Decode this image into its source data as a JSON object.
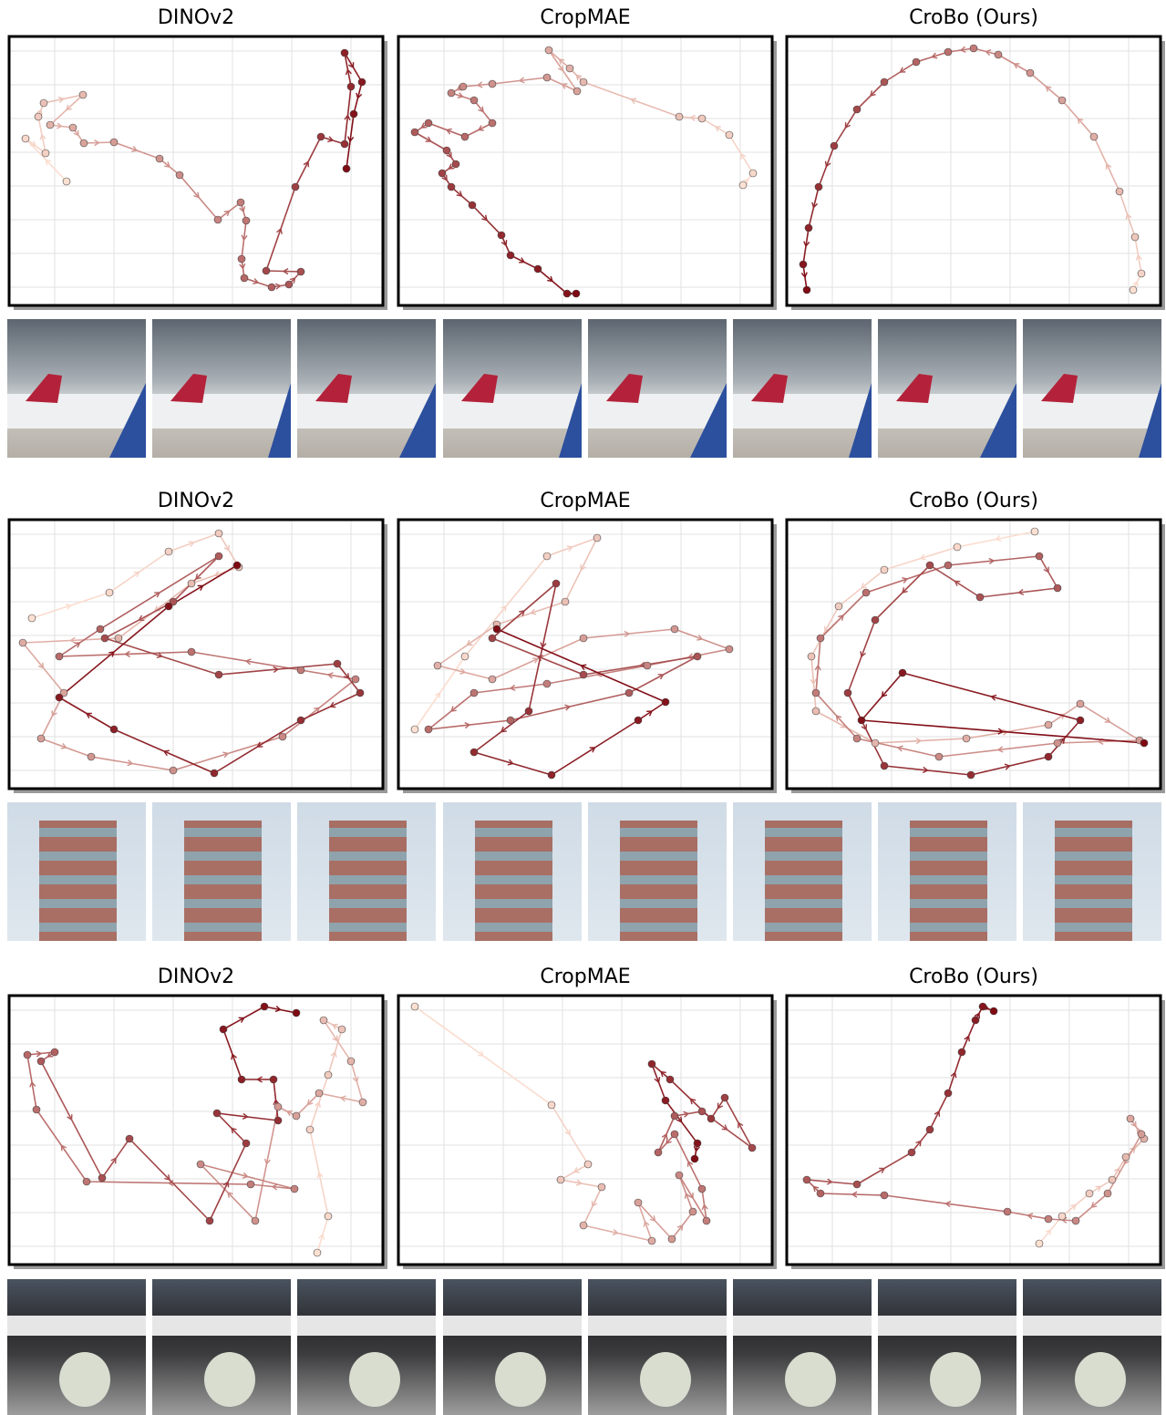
{
  "chart_data": [
    {
      "type": "line",
      "title": "DINOv2",
      "colors": [
        "#fde0d2",
        "#7f0a13"
      ],
      "xlim": [
        0,
        410
      ],
      "ylim": [
        0,
        295
      ],
      "xticks": [
        50,
        115,
        180,
        245,
        310,
        375
      ],
      "yticks": [
        20,
        57,
        94,
        131,
        168,
        205,
        242,
        279
      ],
      "x": [
        63,
        18,
        40,
        32,
        38,
        81,
        45,
        70,
        82,
        115,
        165,
        187,
        229,
        254,
        260,
        255,
        258,
        288,
        307,
        320,
        282,
        314,
        342,
        368,
        375,
        368,
        387,
        378,
        370
      ],
      "y": [
        136,
        183,
        167,
        207,
        222,
        231,
        198,
        195,
        178,
        179,
        161,
        143,
        94,
        113,
        93,
        51,
        30,
        20,
        23,
        37,
        38,
        130,
        185,
        177,
        240,
        277,
        245,
        210,
        150
      ]
    },
    {
      "type": "line",
      "title": "CropMAE",
      "colors": [
        "#fde0d2",
        "#7f0a13"
      ],
      "xlim": [
        0,
        410
      ],
      "ylim": [
        0,
        295
      ],
      "xticks": [
        50,
        115,
        180,
        245,
        310,
        375
      ],
      "yticks": [
        20,
        57,
        94,
        131,
        168,
        205,
        242,
        279
      ],
      "x": [
        378,
        389,
        363,
        333,
        308,
        203,
        188,
        165,
        196,
        163,
        103,
        71,
        58,
        83,
        103,
        73,
        33,
        18,
        53,
        63,
        48,
        58,
        81,
        113,
        123,
        153,
        185,
        195
      ],
      "y": [
        132,
        145,
        187,
        205,
        207,
        245,
        260,
        280,
        235,
        250,
        243,
        240,
        233,
        225,
        200,
        185,
        200,
        190,
        170,
        155,
        145,
        130,
        110,
        77,
        55,
        40,
        13,
        13
      ]
    },
    {
      "type": "line",
      "title": "CroBo (Ours)",
      "colors": [
        "#fde0d2",
        "#7f0a13"
      ],
      "xlim": [
        0,
        410
      ],
      "ylim": [
        0,
        295
      ],
      "xticks": [
        50,
        115,
        180,
        245,
        310,
        375
      ],
      "yticks": [
        20,
        57,
        94,
        131,
        168,
        205,
        242,
        279
      ],
      "x": [
        380,
        389,
        382,
        365,
        337,
        302,
        267,
        232,
        205,
        177,
        142,
        107,
        77,
        52,
        35,
        24,
        18,
        22
      ],
      "y": [
        17,
        35,
        75,
        125,
        185,
        225,
        255,
        275,
        282,
        278,
        267,
        245,
        215,
        175,
        130,
        85,
        45,
        17
      ]
    },
    {
      "type": "line",
      "title": "DINOv2",
      "colors": [
        "#fde0d2",
        "#7f0a13"
      ],
      "xlim": [
        0,
        410
      ],
      "ylim": [
        0,
        295
      ],
      "xticks": [
        50,
        115,
        180,
        245,
        310,
        375
      ],
      "yticks": [
        20,
        57,
        94,
        131,
        168,
        205,
        242,
        279
      ],
      "x": [
        25,
        110,
        175,
        230,
        252,
        200,
        120,
        15,
        60,
        35,
        90,
        180,
        300,
        380,
        320,
        200,
        55,
        100,
        230,
        180,
        105,
        230,
        360,
        385,
        320,
        225,
        115,
        55,
        175,
        250
      ],
      "y": [
        187,
        215,
        260,
        280,
        243,
        225,
        165,
        160,
        105,
        55,
        35,
        20,
        57,
        120,
        130,
        150,
        145,
        175,
        255,
        205,
        165,
        125,
        137,
        105,
        75,
        17,
        65,
        100,
        200,
        245
      ]
    },
    {
      "type": "line",
      "title": "CropMAE",
      "colors": [
        "#fde0d2",
        "#7f0a13"
      ],
      "xlim": [
        0,
        410
      ],
      "ylim": [
        0,
        295
      ],
      "xticks": [
        50,
        115,
        180,
        245,
        310,
        375
      ],
      "yticks": [
        20,
        57,
        94,
        131,
        168,
        205,
        242,
        279
      ],
      "x": [
        18,
        73,
        163,
        218,
        183,
        108,
        43,
        103,
        203,
        303,
        363,
        273,
        163,
        83,
        33,
        123,
        253,
        328,
        203,
        103,
        173,
        143,
        83,
        168,
        263,
        293,
        108
      ],
      "y": [
        65,
        145,
        255,
        275,
        205,
        180,
        135,
        120,
        165,
        175,
        153,
        135,
        115,
        105,
        65,
        75,
        105,
        145,
        125,
        165,
        225,
        85,
        40,
        15,
        75,
        95,
        175
      ]
    },
    {
      "type": "line",
      "title": "CroBo (Ours)",
      "colors": [
        "#fde0d2",
        "#7f0a13"
      ],
      "xlim": [
        0,
        410
      ],
      "ylim": [
        0,
        295
      ],
      "xticks": [
        50,
        115,
        180,
        245,
        310,
        375
      ],
      "yticks": [
        20,
        57,
        94,
        131,
        168,
        205,
        242,
        279
      ],
      "x": [
        272,
        187,
        107,
        57,
        27,
        32,
        97,
        197,
        287,
        322,
        387,
        297,
        167,
        77,
        32,
        37,
        87,
        177,
        277,
        297,
        212,
        157,
        97,
        67,
        107,
        202,
        287,
        322,
        127,
        82,
        392
      ],
      "y": [
        282,
        265,
        240,
        200,
        145,
        85,
        50,
        55,
        70,
        93,
        53,
        50,
        35,
        55,
        105,
        165,
        215,
        245,
        255,
        220,
        210,
        245,
        185,
        105,
        25,
        15,
        35,
        75,
        127,
        75,
        50
      ]
    },
    {
      "type": "line",
      "title": "DINOv2",
      "colors": [
        "#fde0d2",
        "#7f0a13"
      ],
      "xlim": [
        0,
        410
      ],
      "ylim": [
        0,
        295
      ],
      "xticks": [
        50,
        115,
        180,
        245,
        310,
        375
      ],
      "yticks": [
        20,
        57,
        94,
        131,
        168,
        205,
        242,
        279
      ],
      "x": [
        338,
        350,
        330,
        350,
        365,
        345,
        375,
        388,
        340,
        315,
        295,
        270,
        210,
        313,
        265,
        85,
        30,
        20,
        50,
        35,
        102,
        132,
        220,
        260,
        228,
        295,
        290,
        255,
        235,
        280,
        315
      ],
      "y": [
        13,
        53,
        148,
        208,
        258,
        268,
        223,
        178,
        188,
        163,
        173,
        48,
        110,
        83,
        88,
        91,
        170,
        230,
        233,
        223,
        95,
        138,
        48,
        133,
        166,
        158,
        203,
        203,
        258,
        283,
        276
      ]
    },
    {
      "type": "line",
      "title": "CropMAE",
      "colors": [
        "#fde0d2",
        "#7f0a13"
      ],
      "xlim": [
        0,
        410
      ],
      "ylim": [
        0,
        295
      ],
      "xticks": [
        50,
        115,
        180,
        245,
        310,
        375
      ],
      "yticks": [
        20,
        57,
        94,
        131,
        168,
        205,
        242,
        279
      ],
      "x": [
        18,
        168,
        208,
        178,
        223,
        203,
        278,
        263,
        300,
        323,
        308,
        338,
        333,
        303,
        285,
        303,
        333,
        388,
        358,
        343,
        298,
        278,
        293,
        328,
        325
      ],
      "y": [
        283,
        175,
        110,
        93,
        85,
        43,
        26,
        68,
        28,
        58,
        98,
        48,
        83,
        143,
        123,
        163,
        168,
        128,
        183,
        160,
        203,
        220,
        180,
        133,
        116
      ]
    },
    {
      "type": "line",
      "title": "CroBo (Ours)",
      "colors": [
        "#fde0d2",
        "#7f0a13"
      ],
      "xlim": [
        0,
        410
      ],
      "ylim": [
        0,
        295
      ],
      "xticks": [
        50,
        115,
        180,
        245,
        310,
        375
      ],
      "yticks": [
        20,
        57,
        94,
        131,
        168,
        205,
        242,
        279
      ],
      "x": [
        277,
        302,
        332,
        357,
        372,
        392,
        377,
        389,
        352,
        317,
        287,
        242,
        107,
        37,
        22,
        77,
        137,
        157,
        177,
        192,
        207,
        215,
        227
      ],
      "y": [
        23,
        53,
        78,
        93,
        118,
        138,
        160,
        143,
        78,
        48,
        50,
        58,
        76,
        78,
        93,
        88,
        123,
        148,
        188,
        233,
        268,
        283,
        278
      ]
    }
  ]
}
